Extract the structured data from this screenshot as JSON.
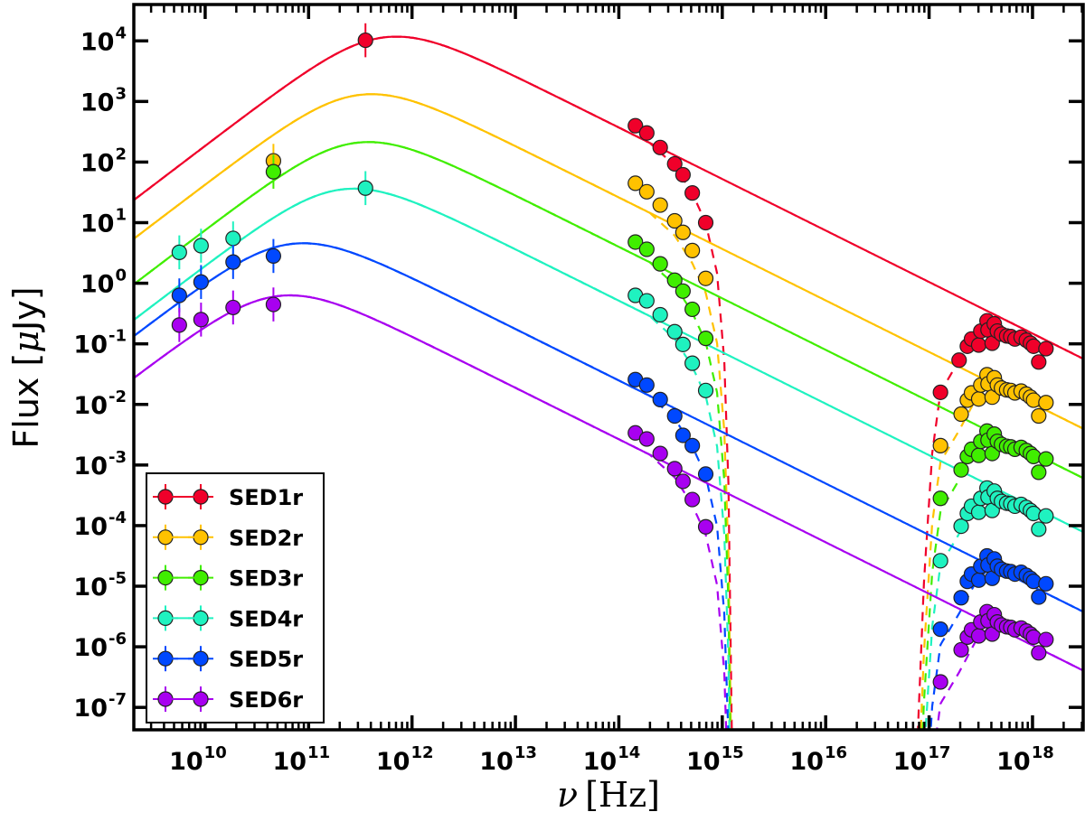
{
  "chart_data": {
    "type": "scatter",
    "title": "",
    "xlabel_symbol": "ν",
    "xlabel_unit": "[Hz]",
    "ylabel_main": "Flux [",
    "ylabel_mu": "μ",
    "ylabel_unit": "Jy]",
    "xscale": "log",
    "yscale": "log",
    "xlim_log10": [
      9.31,
      18.49
    ],
    "ylim_log10": [
      -7.37,
      4.6
    ],
    "x_tick_exponents": [
      "10",
      "11",
      "12",
      "13",
      "14",
      "15",
      "16",
      "17",
      "18"
    ],
    "y_tick_exponents": [
      "4",
      "3",
      "2",
      "1",
      "0",
      "-1",
      "-2",
      "-3",
      "-4",
      "-5",
      "-6",
      "-7"
    ],
    "tick_base": "10",
    "legend_position": "lower-left",
    "model_shape": {
      "low_slope": 1.3,
      "high_slope": 0.85,
      "smoothness": 1.5
    },
    "absorption_model_log10": [
      [
        13.5,
        0
      ],
      [
        14.3,
        0
      ],
      [
        14.54,
        0.17
      ],
      [
        14.71,
        0.48
      ],
      [
        14.84,
        0.86
      ],
      [
        14.95,
        1.6
      ],
      [
        15.02,
        3
      ],
      [
        15.06,
        5
      ],
      [
        15.1,
        10
      ],
      [
        15.2,
        14
      ],
      [
        16.8,
        14
      ],
      [
        16.88,
        8
      ],
      [
        16.95,
        5
      ],
      [
        17.03,
        2.8
      ],
      [
        17.11,
        1.72
      ],
      [
        17.29,
        1.05
      ],
      [
        17.45,
        0.4
      ],
      [
        17.6,
        0
      ]
    ],
    "series": [
      {
        "name": "SED1r",
        "color": "#f0002a",
        "model_peak": {
          "log10_nu": 11.85,
          "log10_flux": 4.07
        },
        "radio": {
          "log10_nu": [
            11.55
          ],
          "log10_flux": [
            4.01
          ]
        },
        "optical": {
          "log10_nu": [
            14.16,
            14.27,
            14.4,
            14.54,
            14.62,
            14.71,
            14.84
          ],
          "log10_flux": [
            2.6,
            2.48,
            2.24,
            1.97,
            1.79,
            1.49,
            1.0
          ]
        },
        "xray": {
          "log10_nu": [
            17.11,
            17.29,
            17.37,
            17.41,
            17.48,
            17.5,
            17.56,
            17.57,
            17.63,
            17.61,
            17.66,
            17.7,
            17.75,
            17.79,
            17.83,
            17.89,
            17.94,
            17.98,
            18.01,
            18.06,
            18.13
          ],
          "log10_flux": [
            -1.8,
            -1.27,
            -1.04,
            -0.92,
            -1.02,
            -0.79,
            -0.62,
            -0.77,
            -0.67,
            -0.99,
            -0.79,
            -0.84,
            -0.87,
            -0.88,
            -0.92,
            -0.89,
            -0.94,
            -0.99,
            -1.04,
            -1.3,
            -1.08
          ]
        }
      },
      {
        "name": "SED2r",
        "color": "#ffc200",
        "model_peak": {
          "log10_nu": 11.61,
          "log10_flux": 3.12
        },
        "radio": {
          "log10_nu": [
            10.66
          ],
          "log10_flux": [
            2.02
          ]
        },
        "optical": {
          "log10_nu": [
            14.16,
            14.27,
            14.4,
            14.54,
            14.62,
            14.71,
            14.84
          ],
          "log10_flux": [
            1.65,
            1.51,
            1.29,
            1.03,
            0.84,
            0.54,
            0.08
          ]
        },
        "xray": {
          "log10_nu": [
            17.11,
            17.31,
            17.37,
            17.41,
            17.48,
            17.5,
            17.56,
            17.57,
            17.63,
            17.61,
            17.66,
            17.7,
            17.75,
            17.79,
            17.83,
            17.89,
            17.94,
            17.98,
            18.01,
            18.06,
            18.13
          ],
          "log10_flux": [
            -2.68,
            -2.16,
            -1.93,
            -1.81,
            -1.91,
            -1.68,
            -1.51,
            -1.66,
            -1.56,
            -1.88,
            -1.68,
            -1.73,
            -1.76,
            -1.77,
            -1.81,
            -1.78,
            -1.83,
            -1.88,
            -1.93,
            -2.19,
            -1.97
          ]
        }
      },
      {
        "name": "SED3r",
        "color": "#40ee00",
        "model_peak": {
          "log10_nu": 11.58,
          "log10_flux": 2.33
        },
        "radio": {
          "log10_nu": [
            10.66
          ],
          "log10_flux": [
            1.84
          ]
        },
        "optical": {
          "log10_nu": [
            14.16,
            14.27,
            14.4,
            14.54,
            14.62,
            14.71,
            14.84
          ],
          "log10_flux": [
            0.68,
            0.56,
            0.32,
            0.05,
            -0.13,
            -0.43,
            -0.91
          ]
        },
        "xray": {
          "log10_nu": [
            17.11,
            17.31,
            17.37,
            17.41,
            17.48,
            17.5,
            17.56,
            17.57,
            17.63,
            17.61,
            17.66,
            17.7,
            17.75,
            17.79,
            17.83,
            17.89,
            17.94,
            17.98,
            18.01,
            18.06,
            18.13
          ],
          "log10_flux": [
            -3.55,
            -3.08,
            -2.86,
            -2.74,
            -2.84,
            -2.61,
            -2.44,
            -2.59,
            -2.49,
            -2.81,
            -2.61,
            -2.66,
            -2.69,
            -2.7,
            -2.74,
            -2.71,
            -2.76,
            -2.81,
            -2.86,
            -3.12,
            -2.9
          ]
        }
      },
      {
        "name": "SED4r",
        "color": "#1ff2c0",
        "model_peak": {
          "log10_nu": 11.44,
          "log10_flux": 1.56
        },
        "radio": {
          "log10_nu": [
            9.75,
            9.96,
            10.27,
            11.55
          ],
          "log10_flux": [
            0.51,
            0.62,
            0.74,
            1.57
          ]
        },
        "optical": {
          "log10_nu": [
            14.16,
            14.27,
            14.4,
            14.54,
            14.62,
            14.71,
            14.84
          ],
          "log10_flux": [
            -0.2,
            -0.29,
            -0.52,
            -0.8,
            -1.01,
            -1.32,
            -1.77
          ]
        },
        "xray": {
          "log10_nu": [
            17.11,
            17.31,
            17.37,
            17.41,
            17.48,
            17.5,
            17.56,
            17.57,
            17.63,
            17.61,
            17.66,
            17.7,
            17.75,
            17.79,
            17.83,
            17.89,
            17.94,
            17.98,
            18.01,
            18.06,
            18.13
          ],
          "log10_flux": [
            -4.58,
            -4.01,
            -3.8,
            -3.68,
            -3.78,
            -3.55,
            -3.38,
            -3.53,
            -3.43,
            -3.75,
            -3.55,
            -3.6,
            -3.63,
            -3.64,
            -3.68,
            -3.65,
            -3.7,
            -3.75,
            -3.8,
            -4.06,
            -3.84
          ]
        }
      },
      {
        "name": "SED5r",
        "color": "#0048ff",
        "model_peak": {
          "log10_nu": 10.95,
          "log10_flux": 0.66
        },
        "radio": {
          "log10_nu": [
            9.75,
            9.96,
            10.27,
            10.66
          ],
          "log10_flux": [
            -0.2,
            0.02,
            0.35,
            0.45
          ]
        },
        "optical": {
          "log10_nu": [
            14.16,
            14.27,
            14.4,
            14.54,
            14.62,
            14.71,
            14.84
          ],
          "log10_flux": [
            -1.59,
            -1.68,
            -1.92,
            -2.19,
            -2.51,
            -2.68,
            -3.15
          ]
        },
        "xray": {
          "log10_nu": [
            17.11,
            17.31,
            17.37,
            17.41,
            17.48,
            17.5,
            17.56,
            17.57,
            17.63,
            17.61,
            17.66,
            17.7,
            17.75,
            17.79,
            17.83,
            17.89,
            17.94,
            17.98,
            18.01,
            18.06,
            18.13
          ],
          "log10_flux": [
            -5.71,
            -5.19,
            -4.92,
            -4.8,
            -4.9,
            -4.67,
            -4.5,
            -4.65,
            -4.55,
            -4.87,
            -4.67,
            -4.72,
            -4.75,
            -4.76,
            -4.8,
            -4.77,
            -4.82,
            -4.87,
            -4.92,
            -5.18,
            -4.96
          ]
        }
      },
      {
        "name": "SED6r",
        "color": "#a800f0",
        "model_peak": {
          "log10_nu": 10.82,
          "log10_flux": -0.2
        },
        "radio": {
          "log10_nu": [
            9.75,
            9.96,
            10.27,
            10.66
          ],
          "log10_flux": [
            -0.69,
            -0.6,
            -0.4,
            -0.35
          ]
        },
        "optical": {
          "log10_nu": [
            14.16,
            14.27,
            14.4,
            14.54,
            14.62,
            14.71,
            14.84
          ],
          "log10_flux": [
            -2.47,
            -2.57,
            -2.81,
            -3.06,
            -3.27,
            -3.57,
            -4.02
          ]
        },
        "xray": {
          "log10_nu": [
            17.11,
            17.31,
            17.37,
            17.41,
            17.48,
            17.5,
            17.56,
            17.57,
            17.63,
            17.61,
            17.66,
            17.7,
            17.75,
            17.79,
            17.83,
            17.89,
            17.94,
            17.98,
            18.01,
            18.06,
            18.13
          ],
          "log10_flux": [
            -6.58,
            -6.05,
            -5.84,
            -5.72,
            -5.82,
            -5.59,
            -5.42,
            -5.57,
            -5.47,
            -5.79,
            -5.59,
            -5.64,
            -5.67,
            -5.68,
            -5.72,
            -5.69,
            -5.74,
            -5.79,
            -5.84,
            -6.1,
            -5.88
          ]
        }
      }
    ]
  }
}
